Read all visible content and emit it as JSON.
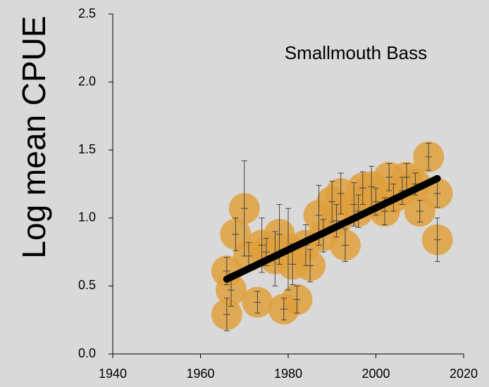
{
  "chart_data": {
    "type": "scatter",
    "ylabel": "Log mean CPUE",
    "annotation": "Smallmouth Bass",
    "color": "#dfa03c",
    "xlim": [
      1940,
      2020
    ],
    "ylim": [
      0,
      2.5
    ],
    "xticks": [
      1940,
      1960,
      1980,
      2000,
      2020
    ],
    "yticks": [
      {
        "value": 0,
        "label": "0.0"
      },
      {
        "value": 0.5,
        "label": "0.5"
      },
      {
        "value": 1,
        "label": "1.0"
      },
      {
        "value": 1.5,
        "label": "1.5"
      },
      {
        "value": 2,
        "label": "2.0"
      },
      {
        "value": 2.5,
        "label": "2.5"
      }
    ],
    "x": [
      1966,
      1966,
      1967,
      1968,
      1970,
      1971,
      1973,
      1974,
      1975,
      1977,
      1978,
      1979,
      1980,
      1981,
      1982,
      1984,
      1985,
      1987,
      1988,
      1990,
      1991,
      1992,
      1993,
      1995,
      1996,
      1997,
      1999,
      2000,
      2002,
      2003,
      2004,
      2006,
      2007,
      2009,
      2010,
      2012,
      2014,
      2014
    ],
    "values": [
      0.29,
      0.61,
      0.47,
      0.88,
      1.07,
      0.72,
      0.38,
      0.8,
      0.75,
      0.7,
      0.88,
      0.33,
      0.77,
      0.66,
      0.4,
      0.8,
      0.65,
      1.02,
      0.87,
      1.12,
      0.98,
      1.18,
      0.8,
      1.1,
      1.05,
      1.22,
      1.23,
      1.12,
      1.05,
      1.3,
      1.15,
      1.2,
      1.3,
      1.25,
      1.05,
      1.45,
      1.18,
      0.84
    ],
    "errors": [
      0.12,
      0.1,
      0.12,
      0.12,
      0.35,
      0.1,
      0.08,
      0.2,
      0.1,
      0.2,
      0.22,
      0.08,
      0.3,
      0.15,
      0.1,
      0.15,
      0.12,
      0.22,
      0.12,
      0.15,
      0.12,
      0.15,
      0.12,
      0.16,
      0.12,
      0.12,
      0.15,
      0.1,
      0.1,
      0.1,
      0.1,
      0.1,
      0.1,
      0.08,
      0.08,
      0.1,
      0.1,
      0.16
    ],
    "trendline": {
      "x": [
        1966,
        2014
      ],
      "values": [
        0.55,
        1.29
      ]
    }
  }
}
